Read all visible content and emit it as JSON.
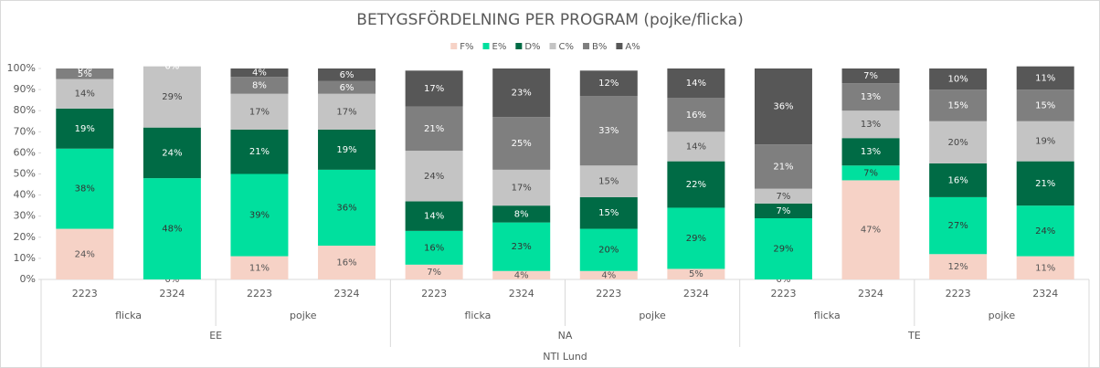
{
  "chart_data": {
    "type": "stacked_bar",
    "title": "BETYGSFÖRDELNING PER PROGRAM (pojke/flicka)",
    "categories": [
      "2223",
      "2324",
      "2223",
      "2324",
      "2223",
      "2324",
      "2223",
      "2324",
      "2223",
      "2324",
      "2223",
      "2324"
    ],
    "x_groups": [
      "flicka",
      "pojke",
      "flicka",
      "pojke",
      "flicka",
      "pojke"
    ],
    "x_supergroups": [
      "EE",
      "NA",
      "TE"
    ],
    "x_root": "NTI Lund",
    "ylim": [
      0,
      100
    ],
    "yticks": [
      {
        "value": 0,
        "label": "0%"
      },
      {
        "value": 10,
        "label": "10%"
      },
      {
        "value": 20,
        "label": "20%"
      },
      {
        "value": 30,
        "label": "30%"
      },
      {
        "value": 40,
        "label": "40%"
      },
      {
        "value": 50,
        "label": "50%"
      },
      {
        "value": 60,
        "label": "60%"
      },
      {
        "value": 70,
        "label": "70%"
      },
      {
        "value": 80,
        "label": "80%"
      },
      {
        "value": 90,
        "label": "90%"
      },
      {
        "value": 100,
        "label": "100%"
      }
    ],
    "legend": "top",
    "series": [
      {
        "name": "F%",
        "color": "#f6d2c6",
        "label_color": "#555555",
        "values": [
          24,
          0,
          11,
          16,
          7,
          4,
          4,
          5,
          0,
          47,
          12,
          11
        ],
        "value_labels": [
          "24%",
          "0%",
          "11%",
          "16%",
          "7%",
          "4%",
          "4%",
          "5%",
          "0%",
          "47%",
          "12%",
          "11%"
        ]
      },
      {
        "name": "E%",
        "color": "#00e09e",
        "label_color": "#333333",
        "values": [
          38,
          48,
          39,
          36,
          16,
          23,
          20,
          29,
          29,
          7,
          27,
          24
        ],
        "value_labels": [
          "38%",
          "48%",
          "39%",
          "36%",
          "16%",
          "23%",
          "20%",
          "29%",
          "29%",
          "7%",
          "27%",
          "24%"
        ]
      },
      {
        "name": "D%",
        "color": "#006b45",
        "label_color": "#ffffff",
        "values": [
          19,
          24,
          21,
          19,
          14,
          8,
          15,
          22,
          7,
          13,
          16,
          21
        ],
        "value_labels": [
          "19%",
          "24%",
          "21%",
          "19%",
          "14%",
          "8%",
          "15%",
          "22%",
          "7%",
          "13%",
          "16%",
          "21%"
        ]
      },
      {
        "name": "C%",
        "color": "#c4c4c4",
        "label_color": "#444444",
        "values": [
          14,
          29,
          17,
          17,
          24,
          17,
          15,
          14,
          7,
          13,
          20,
          19
        ],
        "value_labels": [
          "14%",
          "29%",
          "17%",
          "17%",
          "24%",
          "17%",
          "15%",
          "14%",
          "7%",
          "13%",
          "20%",
          "19%"
        ]
      },
      {
        "name": "B%",
        "color": "#7f7f7f",
        "label_color": "#ffffff",
        "values": [
          5,
          0,
          8,
          6,
          21,
          25,
          33,
          16,
          21,
          13,
          15,
          15
        ],
        "value_labels": [
          "5%",
          "0%",
          "8%",
          "6%",
          "21%",
          "25%",
          "33%",
          "16%",
          "21%",
          "13%",
          "15%",
          "15%"
        ]
      },
      {
        "name": "A%",
        "color": "#575757",
        "label_color": "#ffffff",
        "values": [
          0,
          0,
          4,
          6,
          17,
          23,
          12,
          14,
          36,
          7,
          10,
          11
        ],
        "value_labels": [
          "0%",
          "0%",
          "4%",
          "6%",
          "17%",
          "23%",
          "12%",
          "14%",
          "36%",
          "7%",
          "10%",
          "11%"
        ]
      }
    ]
  }
}
